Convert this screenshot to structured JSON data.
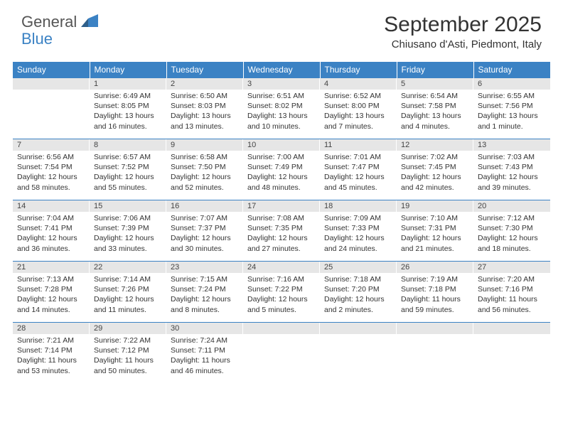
{
  "logo": {
    "part1": "General",
    "part2": "Blue"
  },
  "title": "September 2025",
  "location": "Chiusano d'Asti, Piedmont, Italy",
  "colors": {
    "header_bg": "#3b82c4",
    "daynum_bg": "#e6e6e6",
    "text": "#333333",
    "white": "#ffffff"
  },
  "weekdays": [
    "Sunday",
    "Monday",
    "Tuesday",
    "Wednesday",
    "Thursday",
    "Friday",
    "Saturday"
  ],
  "weeks": [
    [
      {
        "n": "",
        "sr": "",
        "ss": "",
        "dl": ""
      },
      {
        "n": "1",
        "sr": "Sunrise: 6:49 AM",
        "ss": "Sunset: 8:05 PM",
        "dl": "Daylight: 13 hours and 16 minutes."
      },
      {
        "n": "2",
        "sr": "Sunrise: 6:50 AM",
        "ss": "Sunset: 8:03 PM",
        "dl": "Daylight: 13 hours and 13 minutes."
      },
      {
        "n": "3",
        "sr": "Sunrise: 6:51 AM",
        "ss": "Sunset: 8:02 PM",
        "dl": "Daylight: 13 hours and 10 minutes."
      },
      {
        "n": "4",
        "sr": "Sunrise: 6:52 AM",
        "ss": "Sunset: 8:00 PM",
        "dl": "Daylight: 13 hours and 7 minutes."
      },
      {
        "n": "5",
        "sr": "Sunrise: 6:54 AM",
        "ss": "Sunset: 7:58 PM",
        "dl": "Daylight: 13 hours and 4 minutes."
      },
      {
        "n": "6",
        "sr": "Sunrise: 6:55 AM",
        "ss": "Sunset: 7:56 PM",
        "dl": "Daylight: 13 hours and 1 minute."
      }
    ],
    [
      {
        "n": "7",
        "sr": "Sunrise: 6:56 AM",
        "ss": "Sunset: 7:54 PM",
        "dl": "Daylight: 12 hours and 58 minutes."
      },
      {
        "n": "8",
        "sr": "Sunrise: 6:57 AM",
        "ss": "Sunset: 7:52 PM",
        "dl": "Daylight: 12 hours and 55 minutes."
      },
      {
        "n": "9",
        "sr": "Sunrise: 6:58 AM",
        "ss": "Sunset: 7:50 PM",
        "dl": "Daylight: 12 hours and 52 minutes."
      },
      {
        "n": "10",
        "sr": "Sunrise: 7:00 AM",
        "ss": "Sunset: 7:49 PM",
        "dl": "Daylight: 12 hours and 48 minutes."
      },
      {
        "n": "11",
        "sr": "Sunrise: 7:01 AM",
        "ss": "Sunset: 7:47 PM",
        "dl": "Daylight: 12 hours and 45 minutes."
      },
      {
        "n": "12",
        "sr": "Sunrise: 7:02 AM",
        "ss": "Sunset: 7:45 PM",
        "dl": "Daylight: 12 hours and 42 minutes."
      },
      {
        "n": "13",
        "sr": "Sunrise: 7:03 AM",
        "ss": "Sunset: 7:43 PM",
        "dl": "Daylight: 12 hours and 39 minutes."
      }
    ],
    [
      {
        "n": "14",
        "sr": "Sunrise: 7:04 AM",
        "ss": "Sunset: 7:41 PM",
        "dl": "Daylight: 12 hours and 36 minutes."
      },
      {
        "n": "15",
        "sr": "Sunrise: 7:06 AM",
        "ss": "Sunset: 7:39 PM",
        "dl": "Daylight: 12 hours and 33 minutes."
      },
      {
        "n": "16",
        "sr": "Sunrise: 7:07 AM",
        "ss": "Sunset: 7:37 PM",
        "dl": "Daylight: 12 hours and 30 minutes."
      },
      {
        "n": "17",
        "sr": "Sunrise: 7:08 AM",
        "ss": "Sunset: 7:35 PM",
        "dl": "Daylight: 12 hours and 27 minutes."
      },
      {
        "n": "18",
        "sr": "Sunrise: 7:09 AM",
        "ss": "Sunset: 7:33 PM",
        "dl": "Daylight: 12 hours and 24 minutes."
      },
      {
        "n": "19",
        "sr": "Sunrise: 7:10 AM",
        "ss": "Sunset: 7:31 PM",
        "dl": "Daylight: 12 hours and 21 minutes."
      },
      {
        "n": "20",
        "sr": "Sunrise: 7:12 AM",
        "ss": "Sunset: 7:30 PM",
        "dl": "Daylight: 12 hours and 18 minutes."
      }
    ],
    [
      {
        "n": "21",
        "sr": "Sunrise: 7:13 AM",
        "ss": "Sunset: 7:28 PM",
        "dl": "Daylight: 12 hours and 14 minutes."
      },
      {
        "n": "22",
        "sr": "Sunrise: 7:14 AM",
        "ss": "Sunset: 7:26 PM",
        "dl": "Daylight: 12 hours and 11 minutes."
      },
      {
        "n": "23",
        "sr": "Sunrise: 7:15 AM",
        "ss": "Sunset: 7:24 PM",
        "dl": "Daylight: 12 hours and 8 minutes."
      },
      {
        "n": "24",
        "sr": "Sunrise: 7:16 AM",
        "ss": "Sunset: 7:22 PM",
        "dl": "Daylight: 12 hours and 5 minutes."
      },
      {
        "n": "25",
        "sr": "Sunrise: 7:18 AM",
        "ss": "Sunset: 7:20 PM",
        "dl": "Daylight: 12 hours and 2 minutes."
      },
      {
        "n": "26",
        "sr": "Sunrise: 7:19 AM",
        "ss": "Sunset: 7:18 PM",
        "dl": "Daylight: 11 hours and 59 minutes."
      },
      {
        "n": "27",
        "sr": "Sunrise: 7:20 AM",
        "ss": "Sunset: 7:16 PM",
        "dl": "Daylight: 11 hours and 56 minutes."
      }
    ],
    [
      {
        "n": "28",
        "sr": "Sunrise: 7:21 AM",
        "ss": "Sunset: 7:14 PM",
        "dl": "Daylight: 11 hours and 53 minutes."
      },
      {
        "n": "29",
        "sr": "Sunrise: 7:22 AM",
        "ss": "Sunset: 7:12 PM",
        "dl": "Daylight: 11 hours and 50 minutes."
      },
      {
        "n": "30",
        "sr": "Sunrise: 7:24 AM",
        "ss": "Sunset: 7:11 PM",
        "dl": "Daylight: 11 hours and 46 minutes."
      },
      {
        "n": "",
        "sr": "",
        "ss": "",
        "dl": ""
      },
      {
        "n": "",
        "sr": "",
        "ss": "",
        "dl": ""
      },
      {
        "n": "",
        "sr": "",
        "ss": "",
        "dl": ""
      },
      {
        "n": "",
        "sr": "",
        "ss": "",
        "dl": ""
      }
    ]
  ]
}
